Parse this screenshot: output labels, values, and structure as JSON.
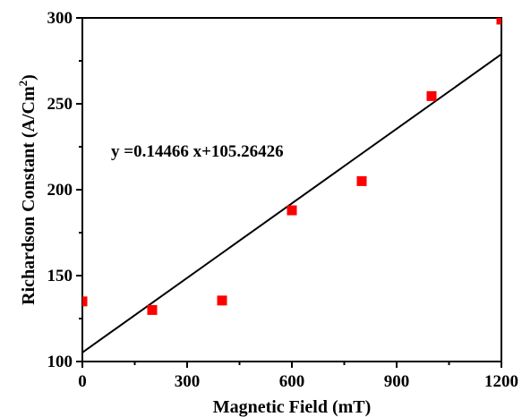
{
  "chart_data": {
    "type": "scatter",
    "x": [
      0,
      200,
      400,
      600,
      800,
      1000,
      1200
    ],
    "y": [
      135,
      130,
      135.5,
      188,
      205,
      254.5,
      299
    ],
    "xlabel": "Magnetic Field (mT)",
    "ylabel": "Richardson Constant (A/Cm",
    "ylabel_sup": "2",
    "ylabel_tail": ")",
    "xlim": [
      0,
      1200
    ],
    "ylim": [
      100,
      300
    ],
    "xticks": [
      0,
      300,
      600,
      900,
      1200
    ],
    "yticks": [
      100,
      150,
      200,
      250,
      300
    ],
    "grid": false,
    "marker_color": "#ff0000",
    "fit": {
      "slope": 0.14466,
      "intercept": 105.26426,
      "label": "y =0.14466 x+105.26426",
      "color": "#000000"
    }
  }
}
